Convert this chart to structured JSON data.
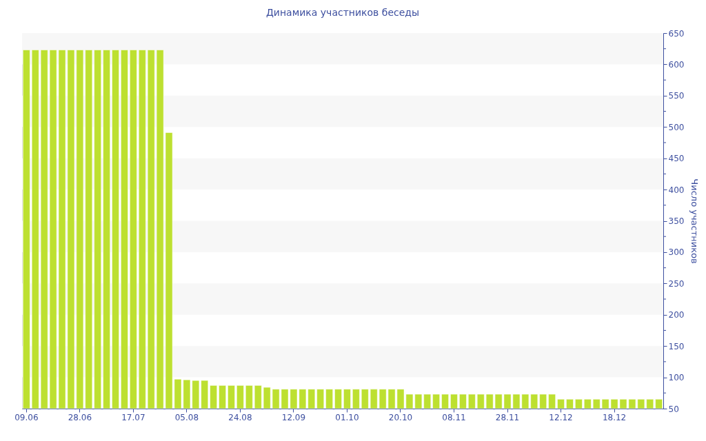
{
  "chart_data": {
    "type": "bar",
    "title": "Динамика участников беседы",
    "ylabel": "Число участников",
    "categories": [
      "09.06",
      null,
      null,
      null,
      null,
      null,
      "28.06",
      null,
      null,
      null,
      null,
      null,
      "17.07",
      null,
      null,
      null,
      null,
      null,
      "05.08",
      null,
      null,
      null,
      null,
      null,
      "24.08",
      null,
      null,
      null,
      null,
      null,
      "12.09",
      null,
      null,
      null,
      null,
      null,
      "01.10",
      null,
      null,
      null,
      null,
      null,
      "20.10",
      null,
      null,
      null,
      null,
      null,
      "08.11",
      null,
      null,
      null,
      null,
      null,
      "28.11",
      null,
      null,
      null,
      null,
      null,
      "12.12",
      null,
      null,
      null,
      null,
      null,
      "18.12",
      null,
      null,
      null,
      null,
      null
    ],
    "values": [
      623,
      623,
      623,
      623,
      623,
      623,
      623,
      623,
      623,
      623,
      623,
      623,
      623,
      623,
      623,
      623,
      491,
      97,
      96,
      95,
      95,
      87,
      87,
      87,
      87,
      87,
      87,
      84,
      81,
      81,
      81,
      81,
      81,
      81,
      81,
      81,
      81,
      81,
      81,
      81,
      81,
      81,
      81,
      73,
      73,
      73,
      73,
      73,
      73,
      73,
      73,
      73,
      73,
      73,
      73,
      73,
      73,
      73,
      73,
      73,
      65,
      65,
      65,
      65,
      65,
      65,
      65,
      65,
      65,
      65,
      65,
      65
    ],
    "color": "#bde030",
    "ylim": [
      50,
      650
    ],
    "yticks": [
      50,
      {
        "value": 75,
        "label": null
      },
      100,
      {
        "value": 125,
        "label": null
      },
      150,
      {
        "value": 175,
        "label": null
      },
      200,
      {
        "value": 225,
        "label": null
      },
      250,
      {
        "value": 275,
        "label": null
      },
      300,
      {
        "value": 325,
        "label": null
      },
      350,
      {
        "value": 375,
        "label": null
      },
      400,
      {
        "value": 425,
        "label": null
      },
      450,
      {
        "value": 475,
        "label": null
      },
      500,
      {
        "value": 525,
        "label": null
      },
      550,
      {
        "value": 575,
        "label": null
      },
      600,
      {
        "value": 625,
        "label": null
      },
      650
    ],
    "bands": [
      {
        "axis": "y",
        "from": 600,
        "to": 650,
        "color": "#f7f7f7"
      },
      {
        "axis": "y",
        "from": 500,
        "to": 550,
        "color": "#f7f7f7"
      },
      {
        "axis": "y",
        "from": 400,
        "to": 450,
        "color": "#f7f7f7"
      },
      {
        "axis": "y",
        "from": 300,
        "to": 350,
        "color": "#f7f7f7"
      },
      {
        "axis": "y",
        "from": 200,
        "to": 250,
        "color": "#f7f7f7"
      },
      {
        "axis": "y",
        "from": 100,
        "to": 150,
        "color": "#f7f7f7"
      }
    ]
  }
}
